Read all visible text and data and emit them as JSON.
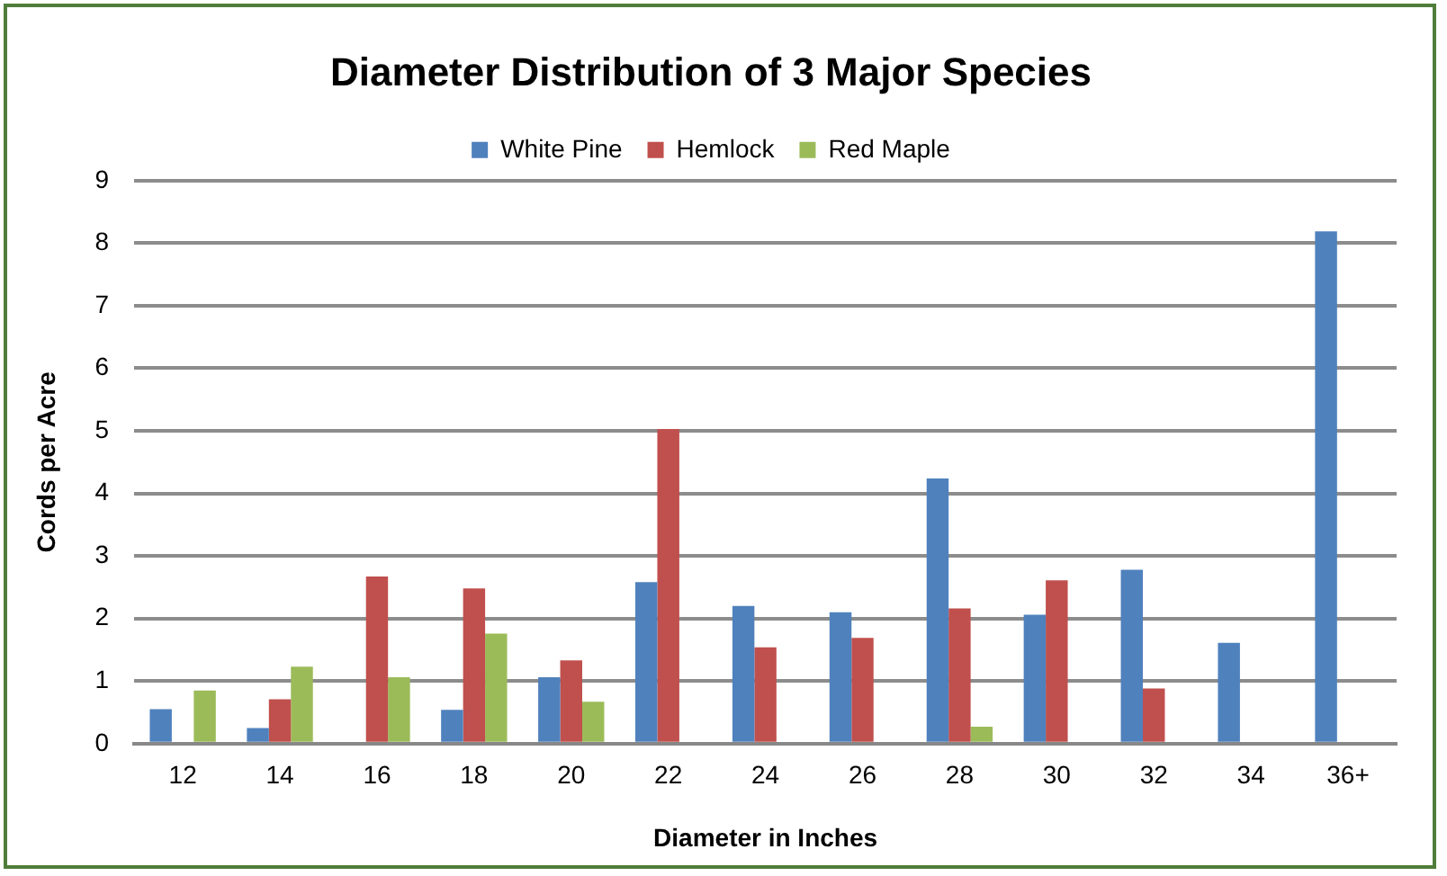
{
  "chart_data": {
    "type": "bar",
    "title": "Diameter Distribution of 3 Major Species",
    "xlabel": "Diameter in Inches",
    "ylabel": "Cords per Acre",
    "categories": [
      "12",
      "14",
      "16",
      "18",
      "20",
      "22",
      "24",
      "26",
      "28",
      "30",
      "32",
      "34",
      "36+"
    ],
    "series": [
      {
        "name": "White Pine",
        "color": "#4f81bd",
        "values": [
          0.55,
          0.25,
          null,
          0.54,
          1.06,
          2.58,
          2.2,
          2.1,
          4.24,
          2.06,
          2.78,
          1.61,
          8.19
        ]
      },
      {
        "name": "Hemlock",
        "color": "#c0504d",
        "values": [
          null,
          0.71,
          2.67,
          2.48,
          1.33,
          5.03,
          1.54,
          1.69,
          2.16,
          2.61,
          0.88,
          null,
          null
        ]
      },
      {
        "name": "Red Maple",
        "color": "#9bbb59",
        "values": [
          0.85,
          1.23,
          1.06,
          1.76,
          0.67,
          null,
          null,
          null,
          0.27,
          null,
          null,
          null,
          null
        ]
      }
    ],
    "ylim": [
      0,
      9
    ],
    "yticks": [
      0,
      1,
      2,
      3,
      4,
      5,
      6,
      7,
      8,
      9
    ],
    "grid": "y",
    "legend": "top"
  }
}
